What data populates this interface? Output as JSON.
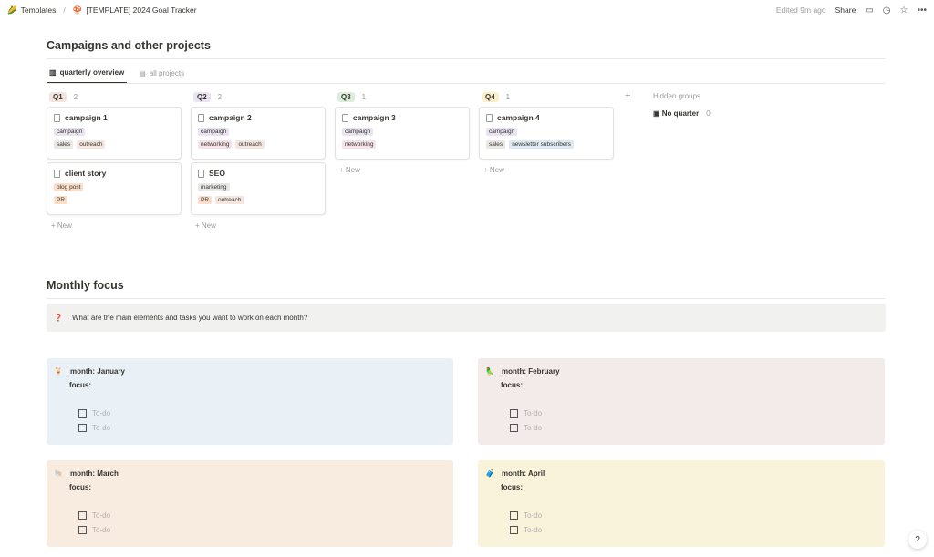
{
  "topbar": {
    "workspace_icon": "🌽",
    "workspace": "Templates",
    "page_icon": "🍄",
    "page": "[TEMPLATE] 2024 Goal Tracker",
    "edited": "Edited 9m ago",
    "share": "Share"
  },
  "campaigns": {
    "title": "Campaigns and other projects",
    "tabs": [
      {
        "label": "quarterly overview",
        "icon": "board-icon"
      },
      {
        "label": "all projects",
        "icon": "table-icon"
      }
    ],
    "groups": [
      {
        "label": "Q1",
        "count": "2",
        "bg": "#f4e4de",
        "cards": [
          {
            "title": "campaign 1",
            "tags1": [
              {
                "t": "campaign",
                "c": "#eae4f2"
              }
            ],
            "tags2": [
              {
                "t": "sales",
                "c": "#e9e8e5"
              },
              {
                "t": "outreach",
                "c": "#f4e5df"
              }
            ]
          },
          {
            "title": "client story",
            "tags1": [
              {
                "t": "blog post",
                "c": "#fadec9"
              }
            ],
            "tags2": [
              {
                "t": "PR",
                "c": "#fadec9"
              }
            ]
          }
        ]
      },
      {
        "label": "Q2",
        "count": "2",
        "bg": "#eae4f2",
        "cards": [
          {
            "title": "campaign 2",
            "tags1": [
              {
                "t": "campaign",
                "c": "#eae4f2"
              }
            ],
            "tags2": [
              {
                "t": "networking",
                "c": "#f6e3ea"
              },
              {
                "t": "outreach",
                "c": "#f4e5df"
              }
            ]
          },
          {
            "title": "SEO",
            "tags1": [
              {
                "t": "marketing",
                "c": "#e9e8e5"
              }
            ],
            "tags2": [
              {
                "t": "PR",
                "c": "#fadec9"
              },
              {
                "t": "outreach",
                "c": "#f4e5df"
              }
            ]
          }
        ]
      },
      {
        "label": "Q3",
        "count": "1",
        "bg": "#dbeddb",
        "cards": [
          {
            "title": "campaign 3",
            "tags1": [
              {
                "t": "campaign",
                "c": "#eae4f2"
              }
            ],
            "tags2": [
              {
                "t": "networking",
                "c": "#f6e3ea"
              }
            ]
          }
        ]
      },
      {
        "label": "Q4",
        "count": "1",
        "bg": "#fbeecb",
        "cards": [
          {
            "title": "campaign 4",
            "tags1": [
              {
                "t": "campaign",
                "c": "#eae4f2"
              }
            ],
            "tags2": [
              {
                "t": "sales",
                "c": "#e9e8e5"
              },
              {
                "t": "newsletter subscribers",
                "c": "#dde9f3"
              }
            ]
          }
        ]
      }
    ],
    "new_label": "New",
    "hidden_groups": "Hidden groups",
    "no_quarter": "No quarter",
    "no_quarter_count": "0"
  },
  "monthly": {
    "title": "Monthly focus",
    "callout_icon": "❓",
    "callout": "What are the main elements and tasks you want to work on each month?",
    "months": [
      {
        "icon": "🍹",
        "label": "month: January",
        "focus": "focus:",
        "bg": "#e9f1f7",
        "todos": [
          "To-do",
          "To-do"
        ]
      },
      {
        "icon": "🦜",
        "label": "month: February",
        "focus": "focus:",
        "bg": "#f3ebe9",
        "todos": [
          "To-do",
          "To-do"
        ]
      },
      {
        "icon": "🐚",
        "label": "month: March",
        "focus": "focus:",
        "bg": "#f8ebdf",
        "todos": [
          "To-do",
          "To-do"
        ]
      },
      {
        "icon": "🧳",
        "label": "month: April",
        "focus": "focus:",
        "bg": "#faf3dc",
        "todos": [
          "To-do",
          "To-do"
        ]
      }
    ]
  },
  "help": "?"
}
